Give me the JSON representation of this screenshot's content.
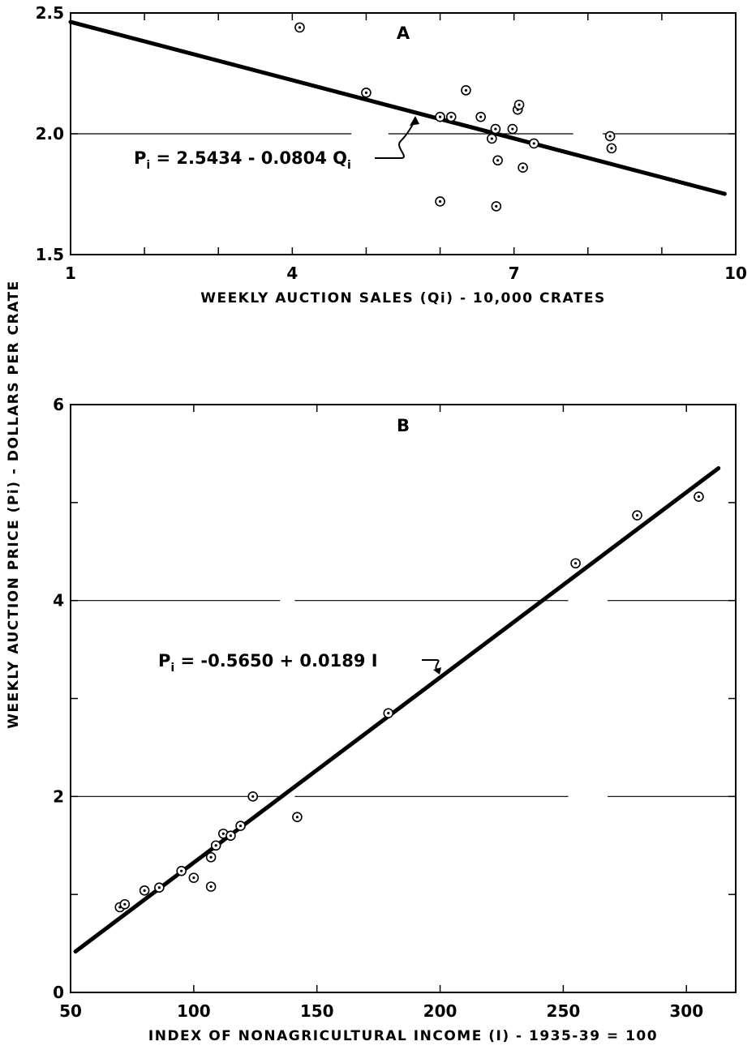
{
  "shared_ylabel": "WEEKLY AUCTION PRICE (Pi) - DOLLARS PER CRATE",
  "chart_data": [
    {
      "type": "scatter",
      "panel": "A",
      "xlabel": "WEEKLY AUCTION SALES (Qi) - 10,000 CRATES",
      "ylabel": "WEEKLY AUCTION PRICE (Pi) - DOLLARS PER CRATE",
      "xlim": [
        1,
        10
      ],
      "ylim": [
        1.5,
        2.5
      ],
      "x_tick_labels": [
        "1",
        "4",
        "7",
        "10"
      ],
      "y_tick_labels": [
        "1.5",
        "2.0",
        "2.5"
      ],
      "grid": "horizontal line at 2.0",
      "points": [
        {
          "x": 4.1,
          "y": 2.44
        },
        {
          "x": 5.0,
          "y": 2.17
        },
        {
          "x": 6.0,
          "y": 2.07
        },
        {
          "x": 6.15,
          "y": 2.07
        },
        {
          "x": 6.35,
          "y": 2.18
        },
        {
          "x": 6.55,
          "y": 2.07
        },
        {
          "x": 6.7,
          "y": 1.98
        },
        {
          "x": 6.75,
          "y": 2.02
        },
        {
          "x": 6.78,
          "y": 1.89
        },
        {
          "x": 6.98,
          "y": 2.02
        },
        {
          "x": 7.05,
          "y": 2.1
        },
        {
          "x": 7.07,
          "y": 2.12
        },
        {
          "x": 7.12,
          "y": 1.86
        },
        {
          "x": 7.27,
          "y": 1.96
        },
        {
          "x": 8.3,
          "y": 1.99
        },
        {
          "x": 8.32,
          "y": 1.94
        },
        {
          "x": 6.0,
          "y": 1.72
        },
        {
          "x": 6.76,
          "y": 1.7
        }
      ],
      "fit": {
        "intercept": 2.5434,
        "slope": -0.0804,
        "x_range": [
          1.0,
          9.85
        ]
      },
      "equation": {
        "prefix": "P",
        "sub": "i",
        "text": " = 2.5434 - 0.0804 Q",
        "sub2": "i"
      }
    },
    {
      "type": "scatter",
      "panel": "B",
      "xlabel": "INDEX OF NONAGRICULTURAL INCOME (I) - 1935-39 = 100",
      "ylabel": "WEEKLY AUCTION PRICE (Pi) - DOLLARS PER CRATE",
      "xlim": [
        50,
        320
      ],
      "ylim": [
        0,
        6
      ],
      "x_tick_labels": [
        "50",
        "100",
        "150",
        "200",
        "250",
        "300"
      ],
      "y_tick_labels": [
        "0",
        "2",
        "4",
        "6"
      ],
      "grid": "horizontal lines at 2 and 4",
      "points": [
        {
          "x": 70,
          "y": 0.87
        },
        {
          "x": 72,
          "y": 0.9
        },
        {
          "x": 80,
          "y": 1.04
        },
        {
          "x": 86,
          "y": 1.07
        },
        {
          "x": 95,
          "y": 1.24
        },
        {
          "x": 100,
          "y": 1.17
        },
        {
          "x": 107,
          "y": 1.08
        },
        {
          "x": 107,
          "y": 1.38
        },
        {
          "x": 109,
          "y": 1.5
        },
        {
          "x": 112,
          "y": 1.62
        },
        {
          "x": 115,
          "y": 1.6
        },
        {
          "x": 119,
          "y": 1.7
        },
        {
          "x": 124,
          "y": 2.0
        },
        {
          "x": 142,
          "y": 1.79
        },
        {
          "x": 179,
          "y": 2.85
        },
        {
          "x": 255,
          "y": 4.38
        },
        {
          "x": 280,
          "y": 4.87
        },
        {
          "x": 305,
          "y": 5.06
        }
      ],
      "fit": {
        "intercept": -0.565,
        "slope": 0.0189,
        "x_range": [
          52,
          313
        ]
      },
      "equation": {
        "prefix": "P",
        "sub": "i",
        "text": " = -0.5650 + 0.0189 I",
        "sub2": ""
      }
    }
  ]
}
